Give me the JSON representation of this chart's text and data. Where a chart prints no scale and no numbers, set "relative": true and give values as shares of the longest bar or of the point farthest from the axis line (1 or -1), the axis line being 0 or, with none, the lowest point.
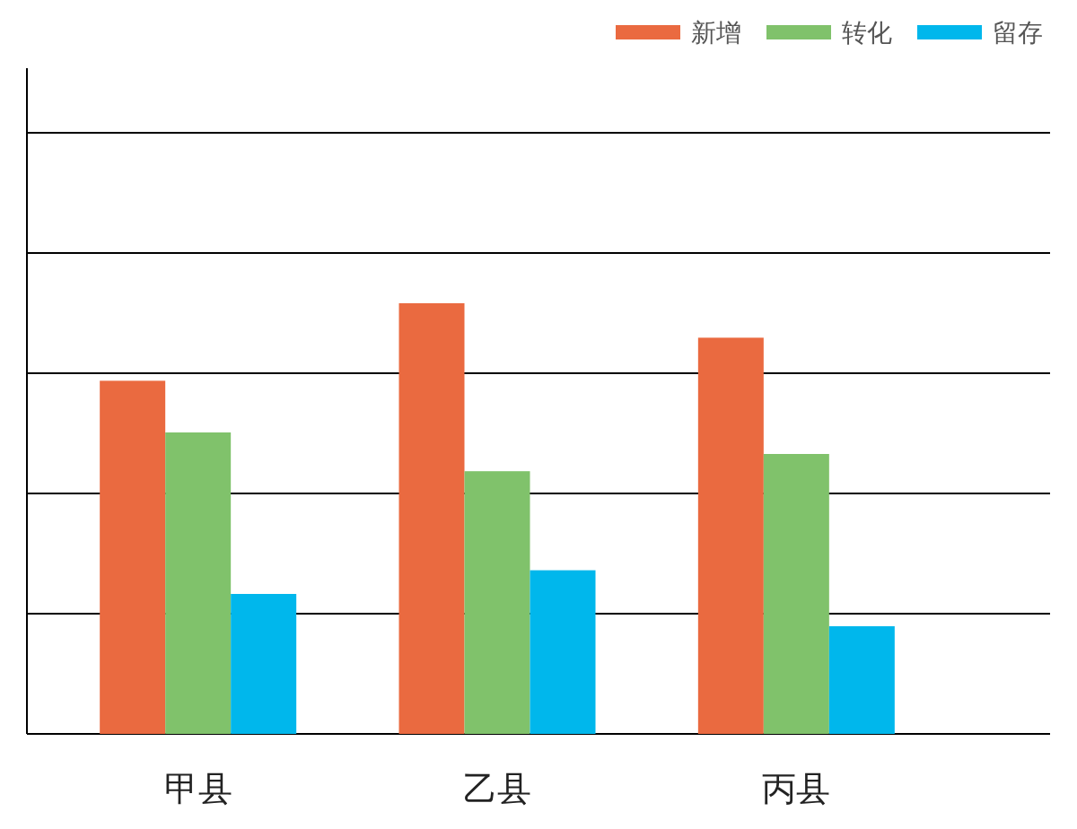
{
  "chart_data": {
    "type": "bar",
    "relative": true,
    "categories": [
      "甲县",
      "乙县",
      "丙县"
    ],
    "series": [
      {
        "name": "新增",
        "color": "#ea6a40",
        "values": [
          0.82,
          1,
          0.92
        ]
      },
      {
        "name": "转化",
        "color": "#80c26b",
        "values": [
          0.7,
          0.61,
          0.65
        ]
      },
      {
        "name": "留存",
        "color": "#00b7ec",
        "values": [
          0.325,
          0.38,
          0.25
        ]
      }
    ],
    "grid": "y",
    "legend": "top right"
  }
}
